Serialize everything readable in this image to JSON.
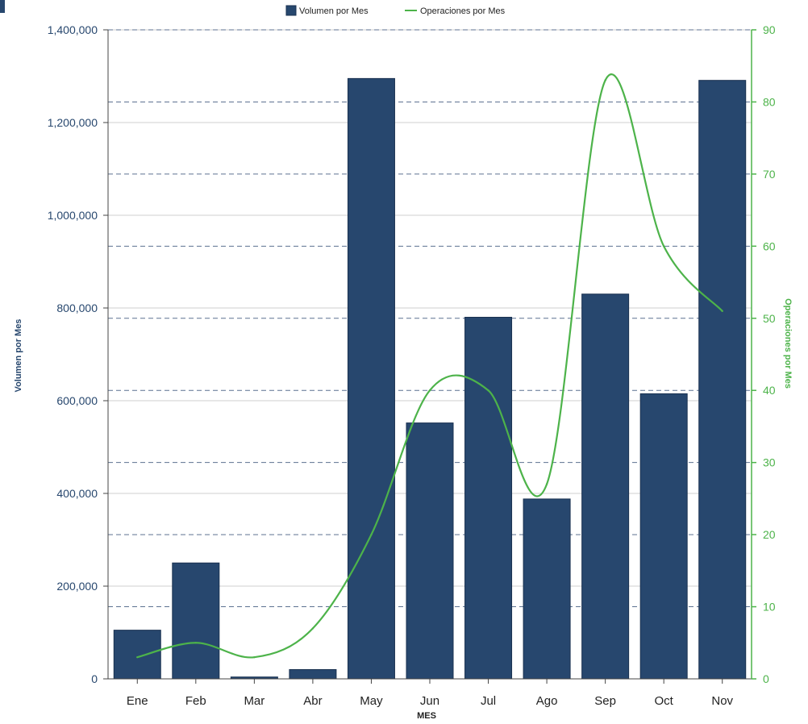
{
  "chart_data": {
    "type": "bar",
    "categories": [
      "Ene",
      "Feb",
      "Mar",
      "Abr",
      "May",
      "Jun",
      "Jul",
      "Ago",
      "Sep",
      "Oct",
      "Nov"
    ],
    "series": [
      {
        "name": "Volumen por Mes",
        "type": "bar",
        "axis": "left",
        "color": "#27476e",
        "values": [
          105000,
          250000,
          4000,
          20000,
          1295000,
          552000,
          780000,
          388000,
          830000,
          615000,
          1291000
        ]
      },
      {
        "name": "Operaciones por Mes",
        "type": "line",
        "axis": "right",
        "color": "#4db34a",
        "values": [
          3,
          5,
          3,
          7,
          20,
          40,
          40,
          27,
          83,
          60,
          51
        ]
      }
    ],
    "xlabel": "MES",
    "ylabel": "Volumen por Mes",
    "y2label": "Operaciones por Mes",
    "ylim": [
      0,
      1400000
    ],
    "y2lim": [
      0,
      90
    ],
    "yticks": [
      "0",
      "200,000",
      "400,000",
      "600,000",
      "800,000",
      "1,000,000",
      "1,200,000",
      "1,400,000"
    ],
    "y2ticks": [
      "0",
      "10",
      "20",
      "30",
      "40",
      "50",
      "60",
      "70",
      "80",
      "90"
    ],
    "legend_position": "top-center",
    "grid": true
  }
}
